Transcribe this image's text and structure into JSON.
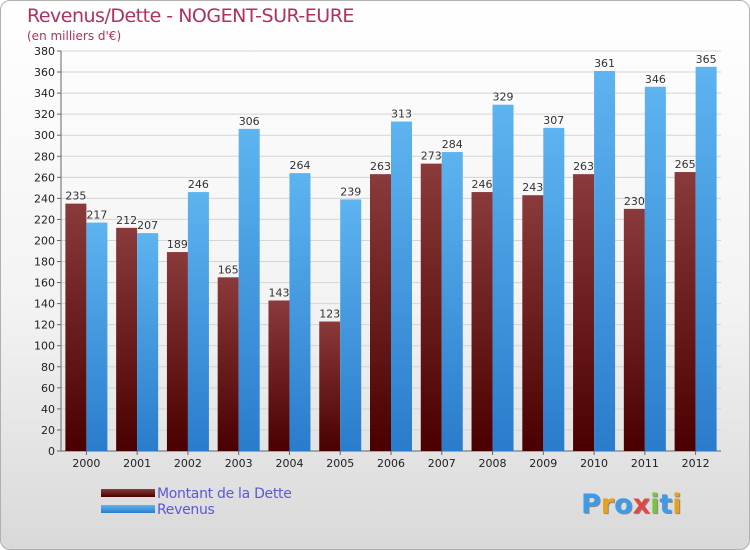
{
  "header": {
    "title": "Revenus/Dette - NOGENT-SUR-EURE",
    "subtitle": "(en milliers d'€)"
  },
  "logo": {
    "text": "Proxiti",
    "letters": [
      {
        "ch": "P",
        "color": "#3d9be9"
      },
      {
        "ch": "r",
        "color": "#e8a020"
      },
      {
        "ch": "o",
        "color": "#3d9be9"
      },
      {
        "ch": "x",
        "color": "#e04848"
      },
      {
        "ch": "i",
        "color": "#7cc242"
      },
      {
        "ch": "t",
        "color": "#3d9be9"
      },
      {
        "ch": "i",
        "color": "#e8a020"
      }
    ]
  },
  "chart_data": {
    "type": "bar",
    "title": "Revenus/Dette - NOGENT-SUR-EURE",
    "subtitle": "(en milliers d'€)",
    "categories": [
      "2000",
      "2001",
      "2002",
      "2003",
      "2004",
      "2005",
      "2006",
      "2007",
      "2008",
      "2009",
      "2010",
      "2011",
      "2012"
    ],
    "series": [
      {
        "name": "Montant de la Dette",
        "color": "#6b0a0a",
        "values": [
          235,
          212,
          189,
          165,
          143,
          123,
          263,
          273,
          246,
          243,
          263,
          230,
          265
        ]
      },
      {
        "name": "Revenus",
        "color": "#3c9ae8",
        "values": [
          217,
          207,
          246,
          306,
          264,
          239,
          313,
          284,
          329,
          307,
          361,
          346,
          365
        ]
      }
    ],
    "ylim": [
      0,
      380
    ],
    "ytick_step": 20,
    "grid": true,
    "legend_position": "bottom-left"
  }
}
